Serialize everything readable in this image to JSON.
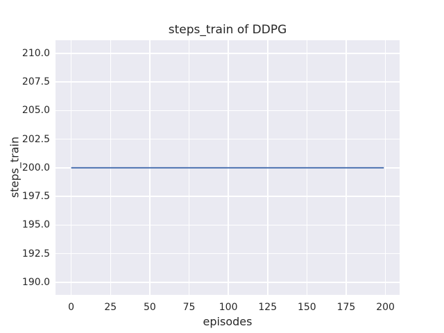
{
  "chart_data": {
    "type": "line",
    "title": "steps_train of DDPG",
    "xlabel": "episodes",
    "ylabel": "steps_train",
    "xlim": [
      -10,
      209
    ],
    "ylim": [
      188.9,
      211.15
    ],
    "x_ticks": [
      0,
      25,
      50,
      75,
      100,
      125,
      150,
      175,
      200
    ],
    "x_tick_labels": [
      "0",
      "25",
      "50",
      "75",
      "100",
      "125",
      "150",
      "175",
      "200"
    ],
    "y_ticks": [
      190.0,
      192.5,
      195.0,
      197.5,
      200.0,
      202.5,
      205.0,
      207.5,
      210.0
    ],
    "y_tick_labels": [
      "190.0",
      "192.5",
      "195.0",
      "197.5",
      "200.0",
      "202.5",
      "205.0",
      "207.5",
      "210.0"
    ],
    "grid": true,
    "legend": null,
    "series": [
      {
        "name": "steps_train",
        "x": [
          0,
          199
        ],
        "y": [
          200,
          200
        ],
        "color": "#4c72b0"
      }
    ],
    "colors": {
      "figure_background": "#ffffff",
      "axes_background": "#eaeaf2",
      "grid": "#ffffff",
      "line": "#4c72b0",
      "text": "#262626"
    }
  }
}
